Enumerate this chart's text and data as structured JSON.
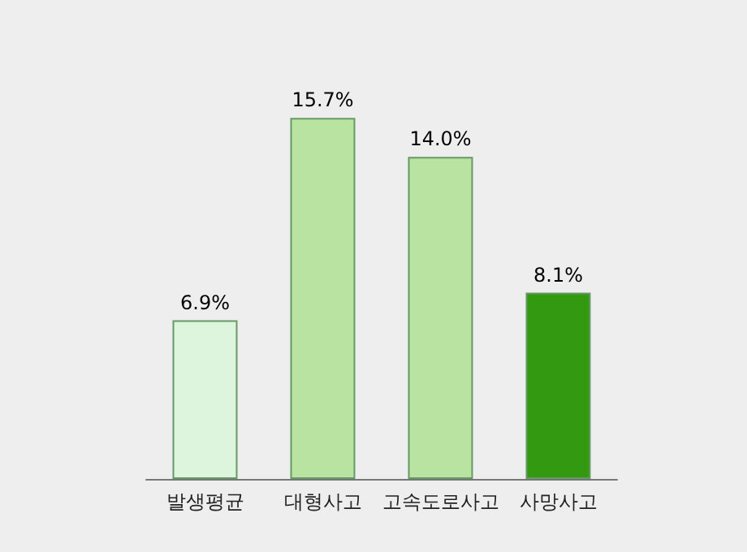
{
  "chart_data": {
    "type": "bar",
    "categories": [
      "발생평균",
      "대형사고",
      "고속도로사고",
      "사망사고"
    ],
    "values": [
      6.9,
      15.7,
      14.0,
      8.1
    ],
    "colors": [
      "#ddf5dd",
      "#b9e3a0",
      "#b9e3a0",
      "#339911"
    ],
    "value_labels": [
      "6.9%",
      "15.7%",
      "14.0%",
      "8.1%"
    ]
  }
}
